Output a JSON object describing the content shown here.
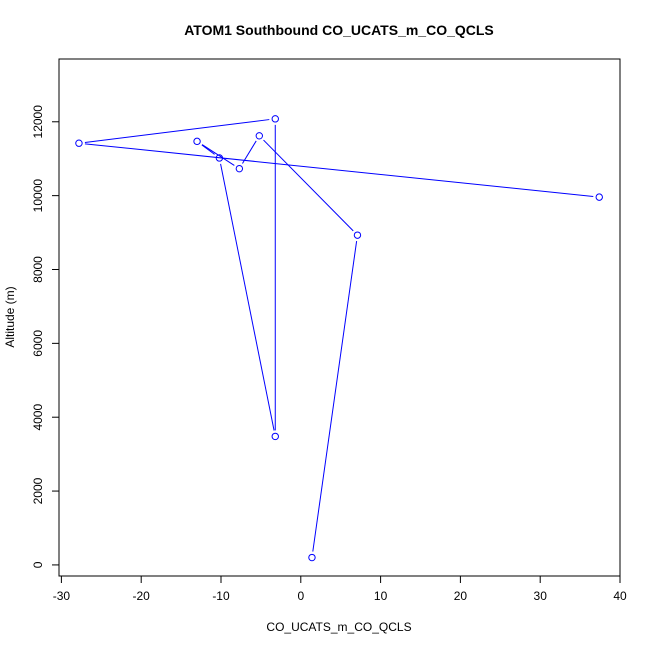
{
  "chart_data": {
    "type": "scatter",
    "title": "ATOM1 Southbound CO_UCATS_m_CO_QCLS",
    "xlabel": "CO_UCATS_m_CO_QCLS",
    "ylabel": "Altitude (m)",
    "xlim": [
      -30.3,
      40.0
    ],
    "ylim": [
      -300,
      13700
    ],
    "xticks": [
      -30,
      -20,
      -10,
      0,
      10,
      20,
      30,
      40
    ],
    "yticks": [
      0,
      2000,
      4000,
      6000,
      8000,
      10000,
      12000
    ],
    "series": [
      {
        "color": "#0000ff",
        "marker": "open-circle",
        "connected": true,
        "points": [
          {
            "x": 1.4,
            "y": 200
          },
          {
            "x": 7.1,
            "y": 8930
          },
          {
            "x": -5.2,
            "y": 11620
          },
          {
            "x": -7.7,
            "y": 10730
          },
          {
            "x": -13.0,
            "y": 11470
          },
          {
            "x": -10.2,
            "y": 11020
          },
          {
            "x": -3.2,
            "y": 3480
          },
          {
            "x": -3.2,
            "y": 12080
          },
          {
            "x": -27.8,
            "y": 11420
          },
          {
            "x": 37.4,
            "y": 9960
          }
        ]
      }
    ]
  }
}
